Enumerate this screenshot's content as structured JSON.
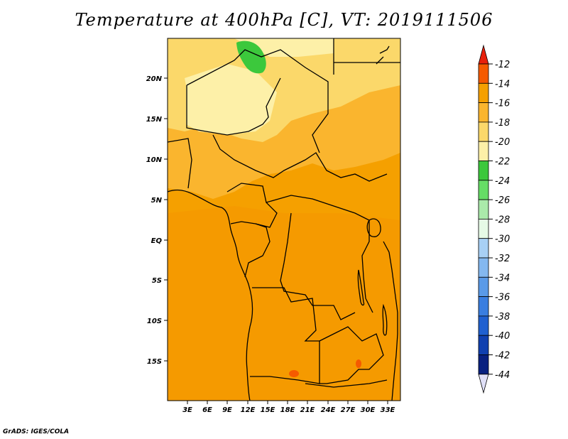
{
  "title": "Temperature at 400hPa [C], VT: 2019111506",
  "credit": "GrADS: IGES/COLA",
  "map": {
    "lat_ticks": [
      "20N",
      "15N",
      "10N",
      "5N",
      "EQ",
      "5S",
      "10S",
      "15S"
    ],
    "lon_ticks": [
      "3E",
      "6E",
      "9E",
      "12E",
      "15E",
      "18E",
      "21E",
      "24E",
      "27E",
      "30E",
      "33E"
    ]
  },
  "colorbar": {
    "labels": [
      "-12",
      "-14",
      "-16",
      "-18",
      "-20",
      "-22",
      "-24",
      "-26",
      "-28",
      "-30",
      "-32",
      "-34",
      "-36",
      "-38",
      "-40",
      "-42",
      "-44"
    ],
    "colors": [
      "#e8200c",
      "#f55a00",
      "#f5a000",
      "#fab52e",
      "#fbd86a",
      "#fdf0a8",
      "#3cc83c",
      "#66dd66",
      "#aaeaaa",
      "#e6fae6",
      "#a8d0f5",
      "#84b8f0",
      "#5a9ae8",
      "#3a7ee0",
      "#2060d0",
      "#1040b0",
      "#082080",
      "#e0e0f8"
    ]
  }
}
